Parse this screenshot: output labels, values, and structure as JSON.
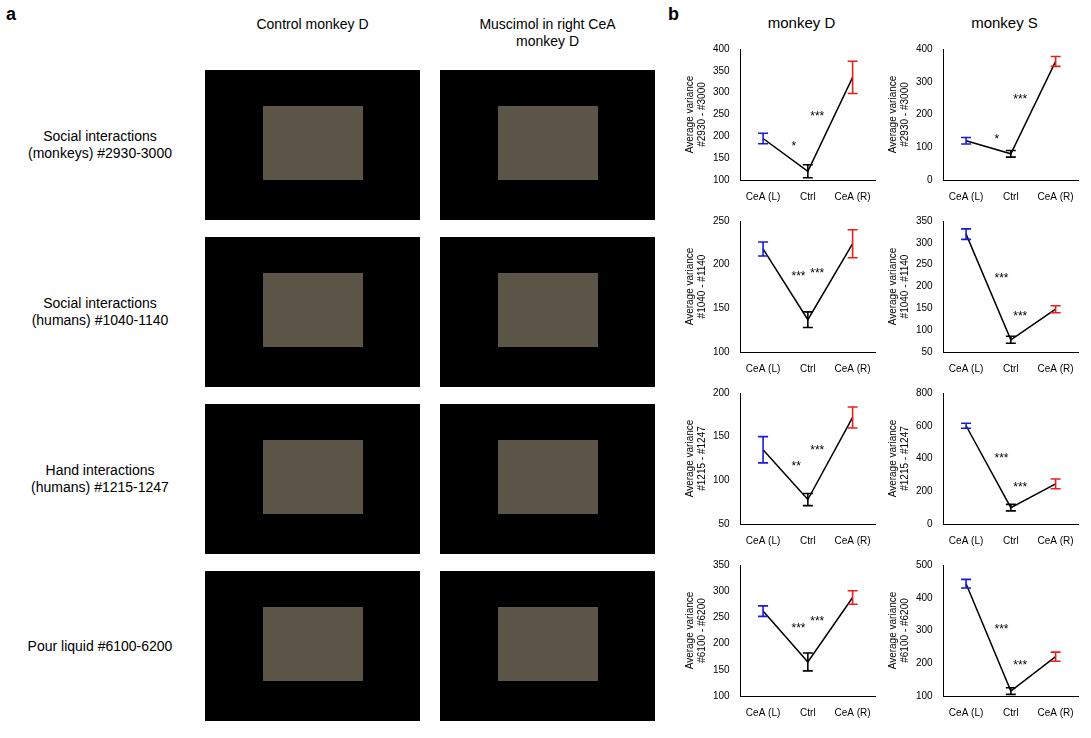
{
  "panel_a": {
    "label": "a",
    "columns": [
      "Control monkey D",
      "Muscimol in right CeA monkey D"
    ],
    "rows": [
      "Social interactions (monkeys) #2930-3000",
      "Social interactions (humans) #1040-1140",
      "Hand interactions (humans) #1215-1247",
      "Pour liquid #6100-6200"
    ]
  },
  "panel_b": {
    "label": "b"
  },
  "chart_data": [
    {
      "type": "line",
      "group": "monkey D",
      "y_label": "Average variance #2930 - #3000",
      "categories": [
        "CeA (L)",
        "Ctrl",
        "CeA (R)"
      ],
      "values": [
        195,
        120,
        335
      ],
      "errors": [
        12,
        15,
        37
      ],
      "color": "#000000",
      "colors": [
        "#1a1ad6",
        "#000000",
        "#e8201c"
      ],
      "ylim": [
        100,
        400
      ],
      "yticks": [
        100,
        150,
        200,
        250,
        300,
        350,
        400
      ],
      "grid": false,
      "significance": [
        {
          "between": [
            "CeA (L)",
            "Ctrl"
          ],
          "label": "*"
        },
        {
          "between": [
            "Ctrl",
            "CeA (R)"
          ],
          "label": "***"
        }
      ]
    },
    {
      "type": "line",
      "group": "monkey S",
      "y_label": "Average variance #2930 - #3000",
      "categories": [
        "CeA (L)",
        "Ctrl",
        "CeA (R)"
      ],
      "values": [
        120,
        80,
        362
      ],
      "errors": [
        10,
        10,
        15
      ],
      "color": "#000000",
      "colors": [
        "#1a1ad6",
        "#000000",
        "#e8201c"
      ],
      "ylim": [
        0,
        400
      ],
      "yticks": [
        0,
        100,
        200,
        300,
        400
      ],
      "grid": false,
      "significance": [
        {
          "between": [
            "CeA (L)",
            "Ctrl"
          ],
          "label": "*"
        },
        {
          "between": [
            "Ctrl",
            "CeA (R)"
          ],
          "label": "***"
        }
      ]
    },
    {
      "type": "line",
      "group": "monkey D",
      "y_label": "Average variance #1040 - #1140",
      "categories": [
        "CeA (L)",
        "Ctrl",
        "CeA (R)"
      ],
      "values": [
        218,
        137,
        224
      ],
      "errors": [
        8,
        9,
        16
      ],
      "color": "#000000",
      "colors": [
        "#1a1ad6",
        "#000000",
        "#e8201c"
      ],
      "ylim": [
        100,
        250
      ],
      "yticks": [
        100,
        150,
        200,
        250
      ],
      "grid": false,
      "significance": [
        {
          "between": [
            "CeA (L)",
            "Ctrl"
          ],
          "label": "***"
        },
        {
          "between": [
            "Ctrl",
            "CeA (R)"
          ],
          "label": "***"
        }
      ]
    },
    {
      "type": "line",
      "group": "monkey S",
      "y_label": "Average variance #1040 - #1140",
      "categories": [
        "CeA (L)",
        "Ctrl",
        "CeA (R)"
      ],
      "values": [
        320,
        78,
        148
      ],
      "errors": [
        12,
        8,
        8
      ],
      "color": "#000000",
      "colors": [
        "#1a1ad6",
        "#000000",
        "#e8201c"
      ],
      "ylim": [
        50,
        350
      ],
      "yticks": [
        50,
        100,
        150,
        200,
        250,
        300,
        350
      ],
      "grid": false,
      "significance": [
        {
          "between": [
            "CeA (L)",
            "Ctrl"
          ],
          "label": "***"
        },
        {
          "between": [
            "Ctrl",
            "CeA (R)"
          ],
          "label": "***"
        }
      ]
    },
    {
      "type": "line",
      "group": "monkey D",
      "y_label": "Average variance #1215 - #1247",
      "categories": [
        "CeA (L)",
        "Ctrl",
        "CeA (R)"
      ],
      "values": [
        135,
        78,
        172
      ],
      "errors": [
        15,
        7,
        12
      ],
      "color": "#000000",
      "colors": [
        "#1a1ad6",
        "#000000",
        "#e8201c"
      ],
      "ylim": [
        50,
        200
      ],
      "yticks": [
        50,
        100,
        150,
        200
      ],
      "grid": false,
      "significance": [
        {
          "between": [
            "CeA (L)",
            "Ctrl"
          ],
          "label": "**"
        },
        {
          "between": [
            "Ctrl",
            "CeA (R)"
          ],
          "label": "***"
        }
      ]
    },
    {
      "type": "line",
      "group": "monkey S",
      "y_label": "Average variance #1215 - #1247",
      "categories": [
        "CeA (L)",
        "Ctrl",
        "CeA (R)"
      ],
      "values": [
        600,
        100,
        245
      ],
      "errors": [
        15,
        20,
        30
      ],
      "color": "#000000",
      "colors": [
        "#1a1ad6",
        "#000000",
        "#e8201c"
      ],
      "ylim": [
        0,
        800
      ],
      "yticks": [
        0,
        200,
        400,
        600,
        800
      ],
      "grid": false,
      "significance": [
        {
          "between": [
            "CeA (L)",
            "Ctrl"
          ],
          "label": "***"
        },
        {
          "between": [
            "Ctrl",
            "CeA (R)"
          ],
          "label": "***"
        }
      ]
    },
    {
      "type": "line",
      "group": "monkey D",
      "y_label": "Average variance #6100 - #6200",
      "categories": [
        "CeA (L)",
        "Ctrl",
        "CeA (R)"
      ],
      "values": [
        262,
        165,
        288
      ],
      "errors": [
        10,
        17,
        13
      ],
      "color": "#000000",
      "colors": [
        "#1a1ad6",
        "#000000",
        "#e8201c"
      ],
      "ylim": [
        100,
        350
      ],
      "yticks": [
        100,
        150,
        200,
        250,
        300,
        350
      ],
      "grid": false,
      "significance": [
        {
          "between": [
            "CeA (L)",
            "Ctrl"
          ],
          "label": "***"
        },
        {
          "between": [
            "Ctrl",
            "CeA (R)"
          ],
          "label": "***"
        }
      ]
    },
    {
      "type": "line",
      "group": "monkey S",
      "y_label": "Average variance #6100 - #6200",
      "categories": [
        "CeA (L)",
        "Ctrl",
        "CeA (R)"
      ],
      "values": [
        443,
        115,
        220
      ],
      "errors": [
        13,
        10,
        14
      ],
      "color": "#000000",
      "colors": [
        "#1a1ad6",
        "#000000",
        "#e8201c"
      ],
      "ylim": [
        100,
        500
      ],
      "yticks": [
        100,
        200,
        300,
        400,
        500
      ],
      "grid": false,
      "significance": [
        {
          "between": [
            "CeA (L)",
            "Ctrl"
          ],
          "label": "***"
        },
        {
          "between": [
            "Ctrl",
            "CeA (R)"
          ],
          "label": "***"
        }
      ]
    }
  ]
}
